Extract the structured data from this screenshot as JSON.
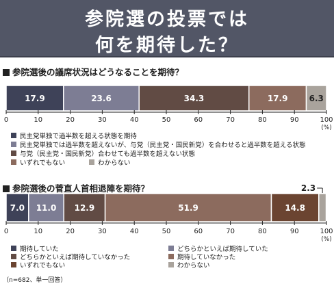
{
  "title": {
    "line1": "参院選の投票では",
    "line2": "何を期待した？"
  },
  "note": "（n=682、単一回答）",
  "chart_data": [
    {
      "type": "bar",
      "stacked": true,
      "orientation": "horizontal",
      "title": "参院選後の議席状況はどうなることを期待？",
      "xlim": [
        0,
        100
      ],
      "x_ticks": [
        "0",
        "10",
        "20",
        "30",
        "40",
        "50",
        "60",
        "70",
        "80",
        "90",
        "100"
      ],
      "unit": "(%)",
      "series": [
        {
          "name": "民主党単独で過半数を超える状態を期待",
          "value": 17.9,
          "label": "17.9",
          "color": "#3e4258",
          "text_color": "#ffffff"
        },
        {
          "name": "民主党単独では過半数を超えないが、与党（民主党・国民新党）を合わせると過半数を超える状態",
          "value": 23.6,
          "label": "23.6",
          "color": "#7d7d94",
          "text_color": "#ffffff"
        },
        {
          "name": "与党（民主党・国民新党）合わせても過半数を超えない状態",
          "value": 34.3,
          "label": "34.3",
          "color": "#614b44",
          "text_color": "#ffffff"
        },
        {
          "name": "いずれでもない",
          "value": 17.9,
          "label": "17.9",
          "color": "#8c6b5e",
          "text_color": "#ffffff"
        },
        {
          "name": "わからない",
          "value": 6.3,
          "label": "6.3",
          "color": "#a9a39c",
          "text_color": "#222222"
        }
      ]
    },
    {
      "type": "bar",
      "stacked": true,
      "orientation": "horizontal",
      "title": "参院選後の菅直人首相退陣を期待？",
      "xlim": [
        0,
        100
      ],
      "x_ticks": [
        "0",
        "10",
        "20",
        "30",
        "40",
        "50",
        "60",
        "70",
        "80",
        "90",
        "100"
      ],
      "unit": "(%)",
      "series": [
        {
          "name": "期待していた",
          "value": 7.0,
          "label": "7.0",
          "color": "#3e4258",
          "text_color": "#ffffff"
        },
        {
          "name": "どちらかといえば期待していた",
          "value": 11.0,
          "label": "11.0",
          "color": "#7d7d94",
          "text_color": "#ffffff"
        },
        {
          "name": "どちらかといえば期待していなかった",
          "value": 12.9,
          "label": "12.9",
          "color": "#614b44",
          "text_color": "#ffffff"
        },
        {
          "name": "期待していなかった",
          "value": 51.9,
          "label": "51.9",
          "color": "#8c6b5e",
          "text_color": "#ffffff"
        },
        {
          "name": "いずれでもない",
          "value": 14.8,
          "label": "14.8",
          "color": "#6b4431",
          "text_color": "#ffffff"
        },
        {
          "name": "わからない",
          "value": 2.3,
          "label": "2.3",
          "color": "#a9a39c",
          "text_color": "#222222"
        }
      ]
    }
  ]
}
